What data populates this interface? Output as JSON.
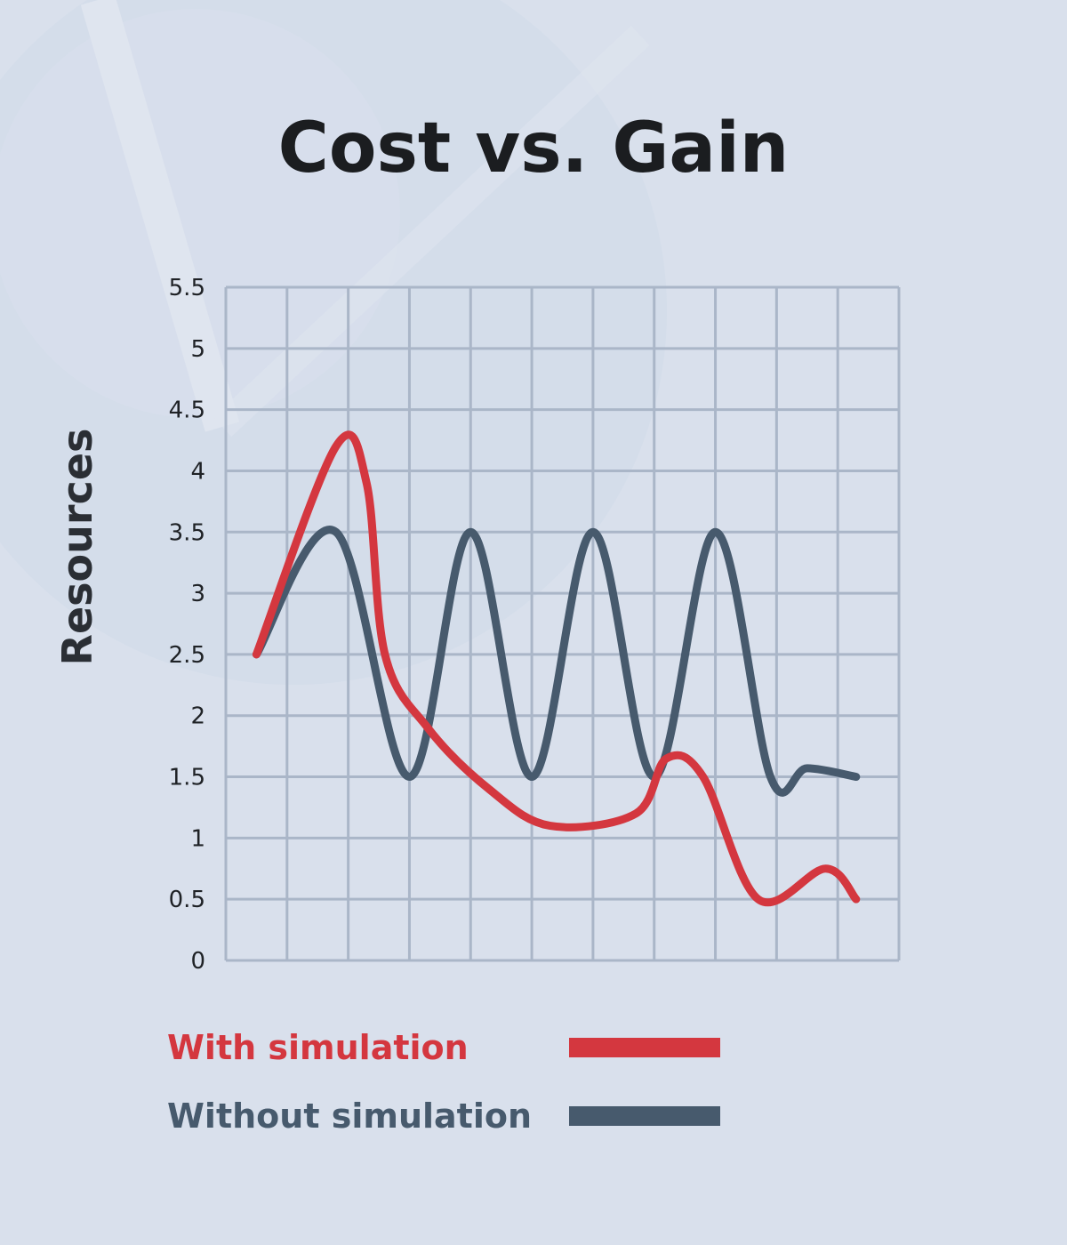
{
  "colors": {
    "background": "#d9e0ec",
    "grid": "#aab6c8",
    "with_simulation": "#d4373f",
    "without_simulation": "#475a6d",
    "title": "#1b1d20"
  },
  "chart_data": {
    "type": "line",
    "title": "Cost vs. Gain",
    "xlabel": "",
    "ylabel": "Resources",
    "ylim": [
      0,
      5.5
    ],
    "yticks": [
      "0",
      "0.5",
      "1",
      "1.5",
      "2",
      "2.5",
      "3",
      "3.5",
      "4",
      "4.5",
      "5",
      "5.5"
    ],
    "xlim": [
      0,
      11
    ],
    "grid": true,
    "legend_position": "bottom",
    "series": [
      {
        "name": "With simulation",
        "color": "#d4373f",
        "x": [
          0.5,
          1.8,
          2.3,
          2.6,
          3.3,
          4.3,
          5.3,
          6.7,
          7.2,
          7.8,
          8.7,
          9.8,
          10.3
        ],
        "y": [
          2.5,
          4.2,
          3.9,
          2.5,
          1.9,
          1.4,
          1.1,
          1.2,
          1.65,
          1.5,
          0.5,
          0.75,
          0.5
        ]
      },
      {
        "name": "Without simulation",
        "color": "#475a6d",
        "x": [
          0.5,
          1.8,
          3.0,
          4.0,
          5.0,
          6.0,
          7.0,
          8.0,
          8.9,
          9.5,
          10.3
        ],
        "y": [
          2.5,
          3.5,
          1.5,
          3.5,
          1.5,
          3.5,
          1.5,
          3.5,
          1.5,
          1.57,
          1.5
        ]
      }
    ]
  }
}
